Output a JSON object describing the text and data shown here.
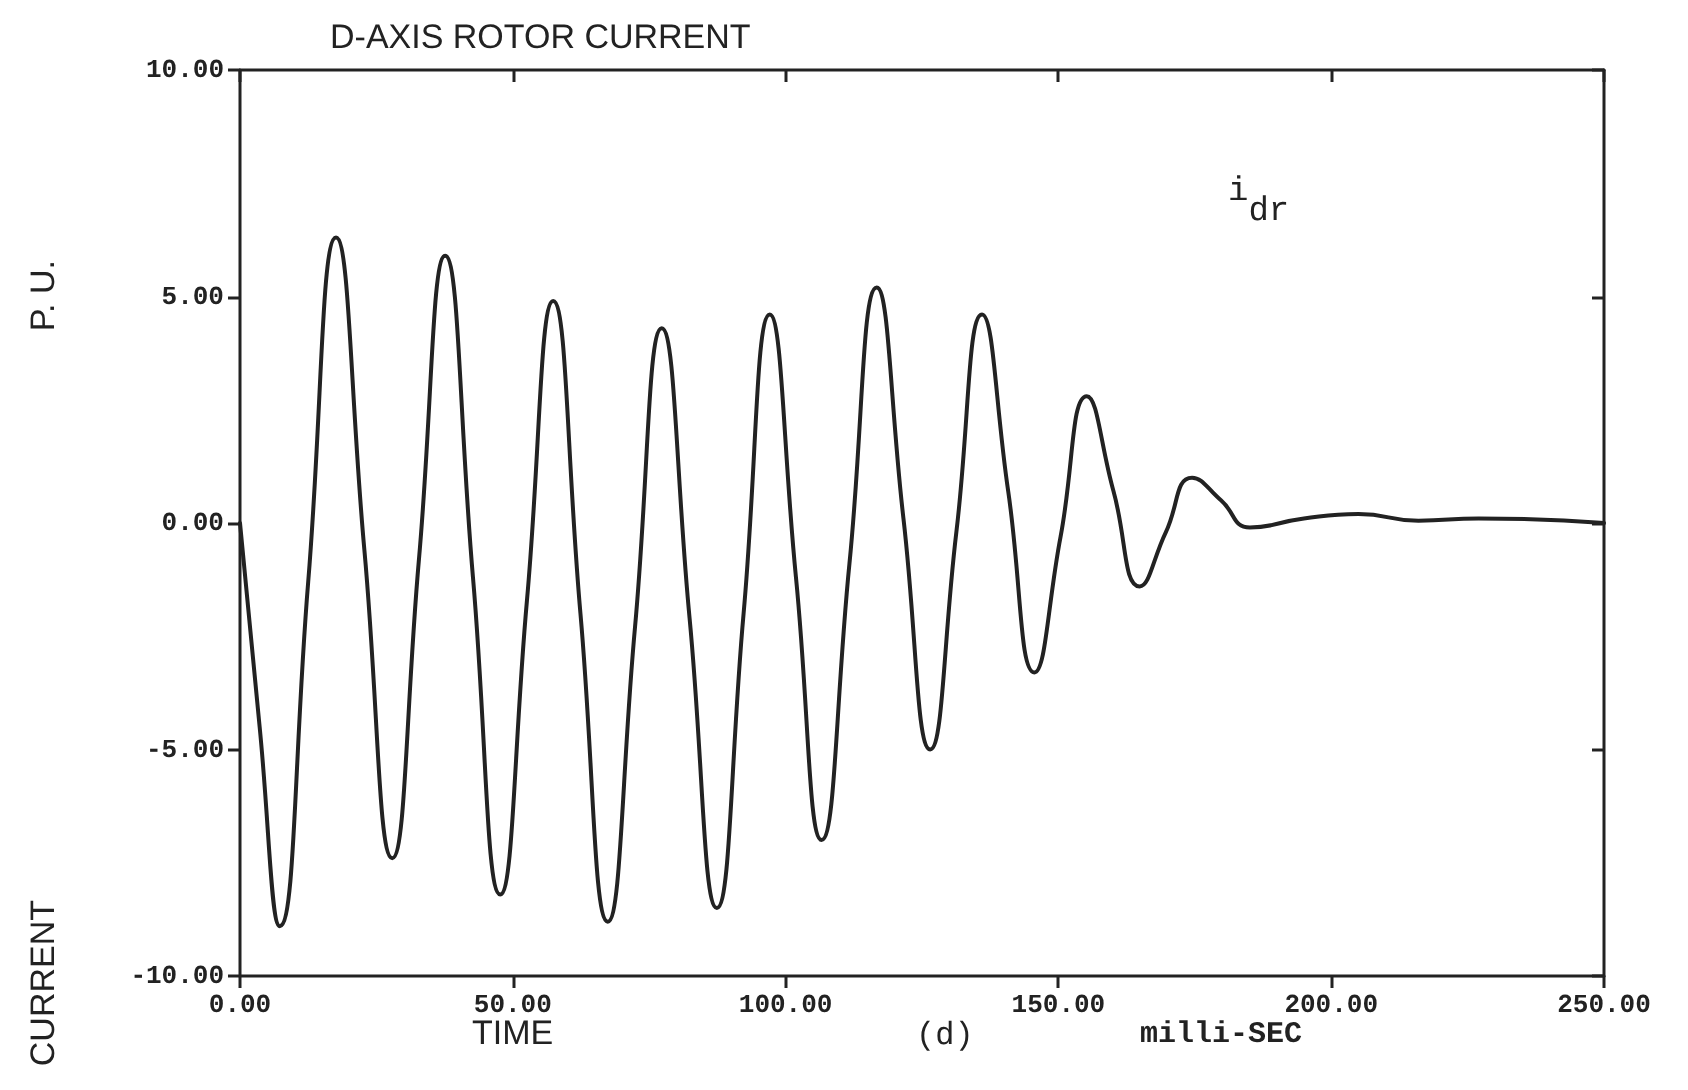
{
  "chart_data": {
    "type": "line",
    "title": "D-AXIS ROTOR CURRENT",
    "xlabel": "TIME",
    "ylabel": "CURRENT",
    "annotations": [
      "P. U.",
      "(d)",
      "milli-SEC"
    ],
    "xlim": [
      0,
      250
    ],
    "ylim": [
      -10,
      10
    ],
    "xticks": [
      {
        "value": 0,
        "label": "0.00"
      },
      {
        "value": 50,
        "label": "50.00"
      },
      {
        "value": 100,
        "label": "100.00"
      },
      {
        "value": 150,
        "label": "150.00"
      },
      {
        "value": 200,
        "label": "200.00"
      },
      {
        "value": 250,
        "label": "250.00"
      }
    ],
    "yticks": [
      {
        "value": -10,
        "label": "-10.00"
      },
      {
        "value": -5,
        "label": "-5.00"
      },
      {
        "value": 0,
        "label": "0.00"
      },
      {
        "value": 5,
        "label": "5.00"
      },
      {
        "value": 10,
        "label": "10.00"
      }
    ],
    "grid": false,
    "marker": "none",
    "line_style": "solid",
    "series": [
      {
        "name": "i$_{dr}$",
        "color": "#222222",
        "x": [
          0,
          3.6,
          7.3,
          12.5,
          17.6,
          22.8,
          27.9,
          32.8,
          37.6,
          42.7,
          47.7,
          52.6,
          57.4,
          62.4,
          67.4,
          72.4,
          77.3,
          82.4,
          87.4,
          92.3,
          97.1,
          101.9,
          106.6,
          111.7,
          116.7,
          121.6,
          126.5,
          131.3,
          136.0,
          140.8,
          145.6,
          150.4,
          155.2,
          160.1,
          164.9,
          169.7,
          174.5,
          179.8,
          185.1,
          195,
          205,
          216,
          227,
          250
        ],
        "values": [
          0,
          -4.5,
          -8.9,
          -1.3,
          6.3,
          -0.6,
          -7.4,
          -0.8,
          5.9,
          -1.2,
          -8.2,
          -1.7,
          4.9,
          -2.0,
          -8.8,
          -2.3,
          4.3,
          -2.1,
          -8.5,
          -2.0,
          4.6,
          -1.2,
          -7.0,
          -0.9,
          5.2,
          0.1,
          -5.0,
          -0.2,
          4.6,
          0.7,
          -3.3,
          -0.3,
          2.8,
          0.7,
          -1.4,
          -0.2,
          1.0,
          0.5,
          -0.1,
          0.1,
          0.2,
          0.05,
          0.1,
          0
        ]
      }
    ]
  }
}
